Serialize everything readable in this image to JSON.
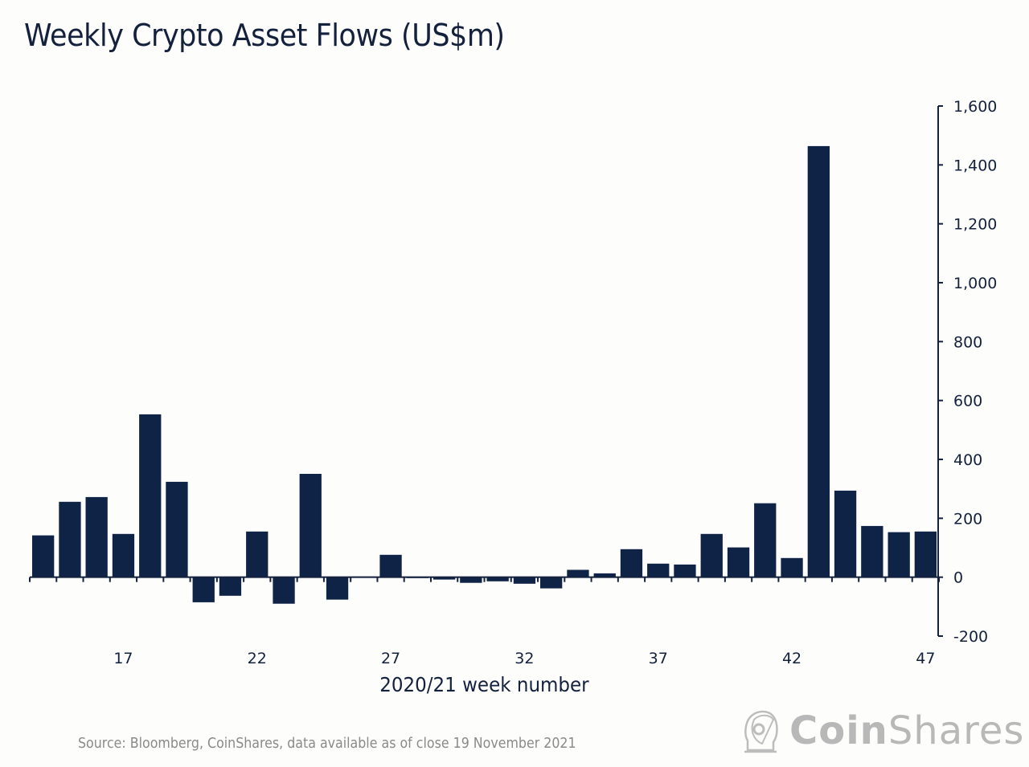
{
  "chart_data": {
    "type": "bar",
    "title": "Weekly Crypto Asset Flows (US$m)",
    "xlabel": "2020/21 week number",
    "ylabel": "",
    "ylim": [
      -200,
      1600
    ],
    "yticks": [
      -200,
      0,
      200,
      400,
      600,
      800,
      1000,
      1200,
      1400,
      1600
    ],
    "ytick_labels": [
      "-200",
      "0",
      "200",
      "400",
      "600",
      "800",
      "1,000",
      "1,200",
      "1,400",
      "1,600"
    ],
    "y_axis_position": "right",
    "xtick_labels": [
      "17",
      "22",
      "27",
      "32",
      "37",
      "42",
      "47"
    ],
    "xtick_values": [
      17,
      22,
      27,
      32,
      37,
      42,
      47
    ],
    "categories": [
      14,
      15,
      16,
      17,
      18,
      19,
      20,
      21,
      22,
      23,
      24,
      25,
      26,
      27,
      28,
      29,
      30,
      31,
      32,
      33,
      34,
      35,
      36,
      37,
      38,
      39,
      40,
      41,
      42,
      43,
      44,
      45,
      46,
      47
    ],
    "values": [
      142,
      256,
      272,
      147,
      553,
      324,
      -85,
      -63,
      155,
      -90,
      351,
      -76,
      2,
      76,
      -3,
      -8,
      -19,
      -14,
      -22,
      -38,
      25,
      13,
      95,
      46,
      43,
      147,
      101,
      251,
      65,
      1464,
      294,
      174,
      153,
      155
    ],
    "bar_color": "#0f2347",
    "grid": false,
    "legend": "none"
  },
  "footer": {
    "source": "Source: Bloomberg, CoinShares, data available as of close 19 November 2021"
  },
  "logo": {
    "bold_part": "Coin",
    "light_part": "Shares",
    "icon": "astronaut-helmet-icon",
    "color": "#b8b8b8"
  }
}
